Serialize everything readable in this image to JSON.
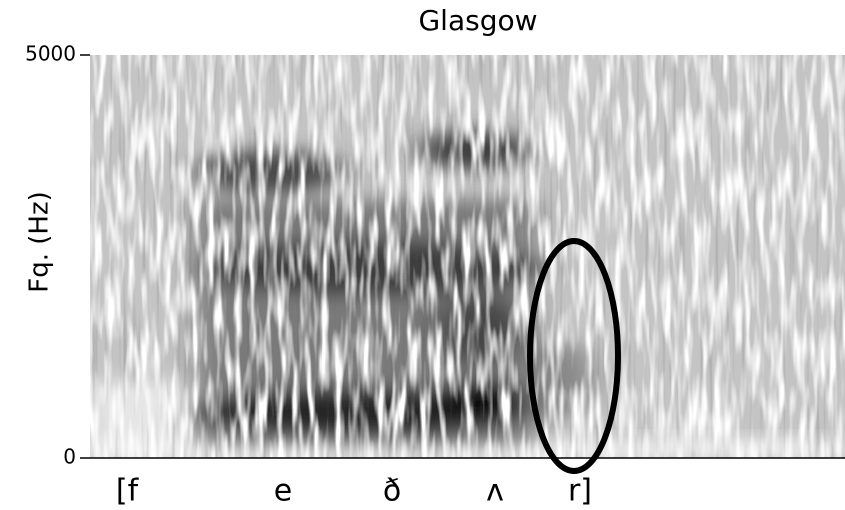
{
  "chart_data": {
    "type": "spectrogram",
    "title": "Glasgow",
    "y_label": "Fq. (Hz)",
    "ylim": [
      0,
      5000
    ],
    "yticks": [
      0,
      5000
    ],
    "categories": [
      "[f",
      "e",
      "ð",
      "ʌ",
      "r]"
    ]
  }
}
